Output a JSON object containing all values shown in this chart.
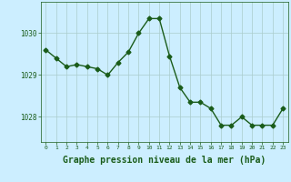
{
  "x": [
    0,
    1,
    2,
    3,
    4,
    5,
    6,
    7,
    8,
    9,
    10,
    11,
    12,
    13,
    14,
    15,
    16,
    17,
    18,
    19,
    20,
    21,
    22,
    23
  ],
  "y": [
    1029.6,
    1029.4,
    1029.2,
    1029.25,
    1029.2,
    1029.15,
    1029.0,
    1029.3,
    1029.55,
    1030.0,
    1030.35,
    1030.35,
    1029.45,
    1028.7,
    1028.35,
    1028.35,
    1028.2,
    1027.8,
    1027.8,
    1028.0,
    1027.8,
    1027.8,
    1027.8,
    1028.2
  ],
  "line_color": "#1a5c1a",
  "marker": "D",
  "marker_size": 2.5,
  "bg_color": "#cceeff",
  "grid_color": "#aacccc",
  "xlabel": "Graphe pression niveau de la mer (hPa)",
  "xlabel_color": "#1a5c1a",
  "xlabel_fontsize": 7,
  "tick_color": "#1a5c1a",
  "yticks": [
    1028,
    1029,
    1030
  ],
  "ylim": [
    1027.4,
    1030.75
  ],
  "xlim": [
    -0.5,
    23.5
  ],
  "xticks": [
    0,
    1,
    2,
    3,
    4,
    5,
    6,
    7,
    8,
    9,
    10,
    11,
    12,
    13,
    14,
    15,
    16,
    17,
    18,
    19,
    20,
    21,
    22,
    23
  ]
}
